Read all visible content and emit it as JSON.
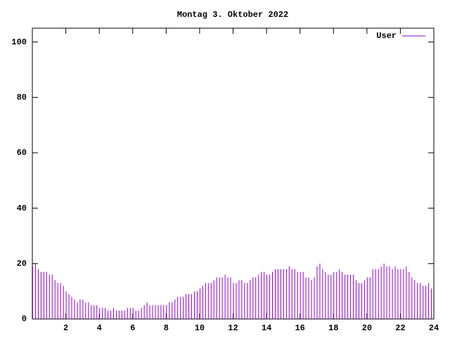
{
  "chart_data": {
    "type": "impulse",
    "title": "Montag 3. Oktober 2022",
    "x": [
      0,
      0.167,
      0.333,
      0.5,
      0.667,
      0.833,
      1,
      1.167,
      1.333,
      1.5,
      1.667,
      1.833,
      2,
      2.167,
      2.333,
      2.5,
      2.667,
      2.833,
      3,
      3.167,
      3.333,
      3.5,
      3.667,
      3.833,
      4,
      4.167,
      4.333,
      4.5,
      4.667,
      4.833,
      5,
      5.167,
      5.333,
      5.5,
      5.667,
      5.833,
      6,
      6.167,
      6.333,
      6.5,
      6.667,
      6.833,
      7,
      7.167,
      7.333,
      7.5,
      7.667,
      7.833,
      8,
      8.167,
      8.333,
      8.5,
      8.667,
      8.833,
      9,
      9.167,
      9.333,
      9.5,
      9.667,
      9.833,
      10,
      10.167,
      10.333,
      10.5,
      10.667,
      10.833,
      11,
      11.167,
      11.333,
      11.5,
      11.667,
      11.833,
      12,
      12.167,
      12.333,
      12.5,
      12.667,
      12.833,
      13,
      13.167,
      13.333,
      13.5,
      13.667,
      13.833,
      14,
      14.167,
      14.333,
      14.5,
      14.667,
      14.833,
      15,
      15.167,
      15.333,
      15.5,
      15.667,
      15.833,
      16,
      16.167,
      16.333,
      16.5,
      16.667,
      16.833,
      17,
      17.167,
      17.333,
      17.5,
      17.667,
      17.833,
      18,
      18.167,
      18.333,
      18.5,
      18.667,
      18.833,
      19,
      19.167,
      19.333,
      19.5,
      19.667,
      19.833,
      20,
      20.167,
      20.333,
      20.5,
      20.667,
      20.833,
      21,
      21.167,
      21.333,
      21.5,
      21.667,
      21.833,
      22,
      22.167,
      22.333,
      22.5,
      22.667,
      22.833,
      23,
      23.167,
      23.333,
      23.5,
      23.667,
      23.833
    ],
    "series": [
      {
        "name": "User",
        "color": "#9400d3",
        "values": [
          19,
          20,
          18,
          17,
          17,
          17,
          16,
          16,
          14,
          13,
          13,
          12,
          10,
          9,
          8,
          7,
          6,
          7,
          7,
          6,
          6,
          5,
          5,
          5,
          4,
          4,
          4,
          3,
          3,
          4,
          3,
          3,
          3,
          3,
          4,
          4,
          4,
          3,
          3,
          4,
          5,
          6,
          5,
          5,
          5,
          5,
          5,
          5,
          5,
          6,
          6,
          7,
          8,
          8,
          8,
          9,
          9,
          9,
          10,
          10,
          11,
          12,
          13,
          13,
          13,
          14,
          15,
          15,
          15,
          16,
          15,
          15,
          13,
          13,
          14,
          14,
          13,
          13,
          14,
          15,
          15,
          16,
          17,
          17,
          16,
          16,
          17,
          18,
          18,
          18,
          18,
          18,
          19,
          18,
          18,
          17,
          17,
          17,
          15,
          15,
          14,
          15,
          19,
          20,
          18,
          17,
          16,
          16,
          17,
          17,
          18,
          17,
          16,
          16,
          16,
          16,
          14,
          13,
          13,
          14,
          15,
          15,
          18,
          18,
          18,
          19,
          20,
          19,
          19,
          18,
          19,
          18,
          18,
          18,
          19,
          17,
          15,
          14,
          13,
          13,
          12,
          12,
          13,
          11
        ]
      }
    ],
    "xlim": [
      0,
      24
    ],
    "xticks": [
      2,
      4,
      6,
      8,
      10,
      12,
      14,
      16,
      18,
      20,
      22,
      24
    ],
    "ylim": [
      0,
      105
    ],
    "yticks": [
      0,
      20,
      40,
      60,
      80,
      100
    ],
    "legend": "upper right"
  }
}
